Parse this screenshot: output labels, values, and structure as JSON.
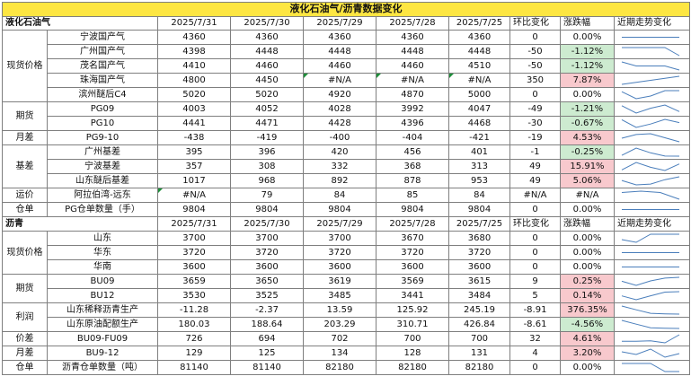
{
  "title": "液化石油气/沥青数据变化",
  "sections": [
    {
      "name": "液化石油气",
      "headers": [
        "2025/7/31",
        "2025/7/30",
        "2025/7/29",
        "2025/7/28",
        "2025/7/25",
        "环比变化",
        "涨跌幅",
        "近期走势变化"
      ],
      "rows": [
        {
          "group": "现货价格",
          "span": 5,
          "item": "宁波国产气",
          "v": [
            "4360",
            "4360",
            "4360",
            "4360",
            "4360"
          ],
          "chg": "0",
          "pct": "0.00%",
          "dir": "flat",
          "trend": [
            4360,
            4360,
            4360,
            4360,
            4360
          ]
        },
        {
          "item": "广州国产气",
          "v": [
            "4398",
            "4448",
            "4448",
            "4448",
            "4448"
          ],
          "chg": "-50",
          "pct": "-1.12%",
          "dir": "down",
          "trend": [
            4448,
            4448,
            4448,
            4448,
            4398
          ]
        },
        {
          "item": "茂名国产气",
          "v": [
            "4410",
            "4460",
            "4460",
            "4460",
            "4510"
          ],
          "chg": "-50",
          "pct": "-1.12%",
          "dir": "down",
          "trend": [
            4510,
            4460,
            4460,
            4460,
            4410
          ]
        },
        {
          "item": "珠海国产气",
          "v": [
            "4800",
            "4450",
            "#N/A",
            "#N/A",
            "#N/A"
          ],
          "chg": "350",
          "pct": "7.87%",
          "dir": "up",
          "na": [
            2,
            3,
            4
          ],
          "trend": [
            4450,
            4800
          ]
        },
        {
          "item": "滨州醚后C4",
          "v": [
            "5020",
            "5020",
            "4920",
            "4870",
            "5000"
          ],
          "chg": "0",
          "pct": "0.00%",
          "dir": "flat",
          "trend": [
            5000,
            4870,
            4920,
            5020,
            5020
          ]
        },
        {
          "group": "期货",
          "span": 2,
          "item": "PG09",
          "v": [
            "4003",
            "4052",
            "4028",
            "3992",
            "4047"
          ],
          "chg": "-49",
          "pct": "-1.21%",
          "dir": "down",
          "trend": [
            4047,
            3992,
            4028,
            4052,
            4003
          ]
        },
        {
          "item": "PG10",
          "v": [
            "4441",
            "4471",
            "4428",
            "4396",
            "4468"
          ],
          "chg": "-30",
          "pct": "-0.67%",
          "dir": "down",
          "trend": [
            4468,
            4396,
            4428,
            4471,
            4441
          ]
        },
        {
          "group": "月差",
          "span": 1,
          "item": "PG9-10",
          "v": [
            "-438",
            "-419",
            "-400",
            "-404",
            "-421"
          ],
          "chg": "-19",
          "pct": "4.53%",
          "dir": "up",
          "trend": [
            -421,
            -404,
            -400,
            -419,
            -438
          ]
        },
        {
          "group": "基差",
          "span": 3,
          "item": "广州基差",
          "v": [
            "395",
            "396",
            "420",
            "456",
            "401"
          ],
          "chg": "-1",
          "pct": "-0.25%",
          "dir": "down",
          "trend": [
            401,
            456,
            420,
            396,
            395
          ]
        },
        {
          "item": "宁波基差",
          "v": [
            "357",
            "308",
            "332",
            "368",
            "313"
          ],
          "chg": "49",
          "pct": "15.91%",
          "dir": "up",
          "trend": [
            313,
            368,
            332,
            308,
            357
          ]
        },
        {
          "item": "山东醚后基差",
          "v": [
            "1017",
            "968",
            "892",
            "878",
            "953"
          ],
          "chg": "49",
          "pct": "5.06%",
          "dir": "up",
          "trend": [
            953,
            878,
            892,
            968,
            1017
          ]
        },
        {
          "group": "运价",
          "span": 1,
          "item": "阿拉伯湾-远东",
          "v": [
            "#N/A",
            "79",
            "84",
            "85",
            "84"
          ],
          "chg": "#N/A",
          "pct": "#N/A",
          "dir": "flat",
          "na": [
            0
          ],
          "natext": [
            0,
            1
          ],
          "trend": [
            84,
            85,
            84,
            79
          ]
        },
        {
          "group": "仓单",
          "span": 1,
          "item": "PG仓单数量（手）",
          "v": [
            "9804",
            "9804",
            "9804",
            "9804",
            "9804"
          ],
          "chg": "0",
          "pct": "0.00%",
          "dir": "flat",
          "trend": [
            9804,
            9804,
            9804,
            9804,
            9804
          ]
        }
      ]
    },
    {
      "name": "沥青",
      "headers": [
        "2025/7/31",
        "2025/7/30",
        "2025/7/29",
        "2025/7/28",
        "2025/7/25",
        "环比变化",
        "涨跌幅",
        "近期走势变化"
      ],
      "rows": [
        {
          "group": "现货价格",
          "span": 3,
          "item": "山东",
          "v": [
            "3700",
            "3700",
            "3700",
            "3670",
            "3680"
          ],
          "chg": "0",
          "pct": "0.00%",
          "dir": "flat",
          "trend": [
            3680,
            3670,
            3700,
            3700,
            3700
          ]
        },
        {
          "item": "华东",
          "v": [
            "3720",
            "3720",
            "3720",
            "3720",
            "3720"
          ],
          "chg": "0",
          "pct": "0.00%",
          "dir": "flat",
          "trend": [
            3720,
            3720,
            3720,
            3720,
            3720
          ]
        },
        {
          "item": "华南",
          "v": [
            "3600",
            "3600",
            "3600",
            "3600",
            "3600"
          ],
          "chg": "0",
          "pct": "0.00%",
          "dir": "flat",
          "trend": [
            3600,
            3600,
            3600,
            3600,
            3600
          ]
        },
        {
          "group": "期货",
          "span": 2,
          "item": "BU09",
          "v": [
            "3659",
            "3650",
            "3619",
            "3569",
            "3615"
          ],
          "chg": "9",
          "pct": "0.25%",
          "dir": "up",
          "trend": [
            3615,
            3569,
            3619,
            3650,
            3659
          ]
        },
        {
          "item": "BU12",
          "v": [
            "3530",
            "3525",
            "3485",
            "3441",
            "3484"
          ],
          "chg": "5",
          "pct": "0.14%",
          "dir": "up",
          "trend": [
            3484,
            3441,
            3485,
            3525,
            3530
          ]
        },
        {
          "group": "利润",
          "span": 2,
          "item": "山东稀释沥青生产",
          "v": [
            "-11.28",
            "-2.37",
            "13.59",
            "125.92",
            "245.19"
          ],
          "chg": "-8.91",
          "pct": "376.35%",
          "dir": "up",
          "trend": [
            245.19,
            125.92,
            13.59,
            -2.37,
            -11.28
          ]
        },
        {
          "item": "山东原油配额生产",
          "v": [
            "180.03",
            "188.64",
            "203.29",
            "310.71",
            "426.84"
          ],
          "chg": "-8.61",
          "pct": "-4.56%",
          "dir": "down",
          "trend": [
            426.84,
            310.71,
            203.29,
            188.64,
            180.03
          ]
        },
        {
          "group": "价差",
          "span": 1,
          "item": "BU09-FU09",
          "v": [
            "726",
            "694",
            "702",
            "700",
            "700"
          ],
          "chg": "32",
          "pct": "4.61%",
          "dir": "up",
          "trend": [
            700,
            700,
            702,
            694,
            726
          ]
        },
        {
          "group": "月差",
          "span": 1,
          "item": "BU9-12",
          "v": [
            "129",
            "125",
            "134",
            "128",
            "131"
          ],
          "chg": "4",
          "pct": "3.20%",
          "dir": "up",
          "trend": [
            131,
            128,
            134,
            125,
            129
          ]
        },
        {
          "group": "仓单",
          "span": 1,
          "item": "沥青仓单数量（吨）",
          "v": [
            "81140",
            "81140",
            "82180",
            "82180",
            "82180"
          ],
          "chg": "0",
          "pct": "0.00%",
          "dir": "flat",
          "trend": [
            82180,
            82180,
            82180,
            81140,
            81140
          ]
        }
      ]
    }
  ],
  "colors": {
    "title_bg": "#fde642",
    "up_bg": "#f8c9cd",
    "down_bg": "#cdebd0",
    "spark": "#4a7ebb",
    "na_mark": "#1e8f3a"
  }
}
